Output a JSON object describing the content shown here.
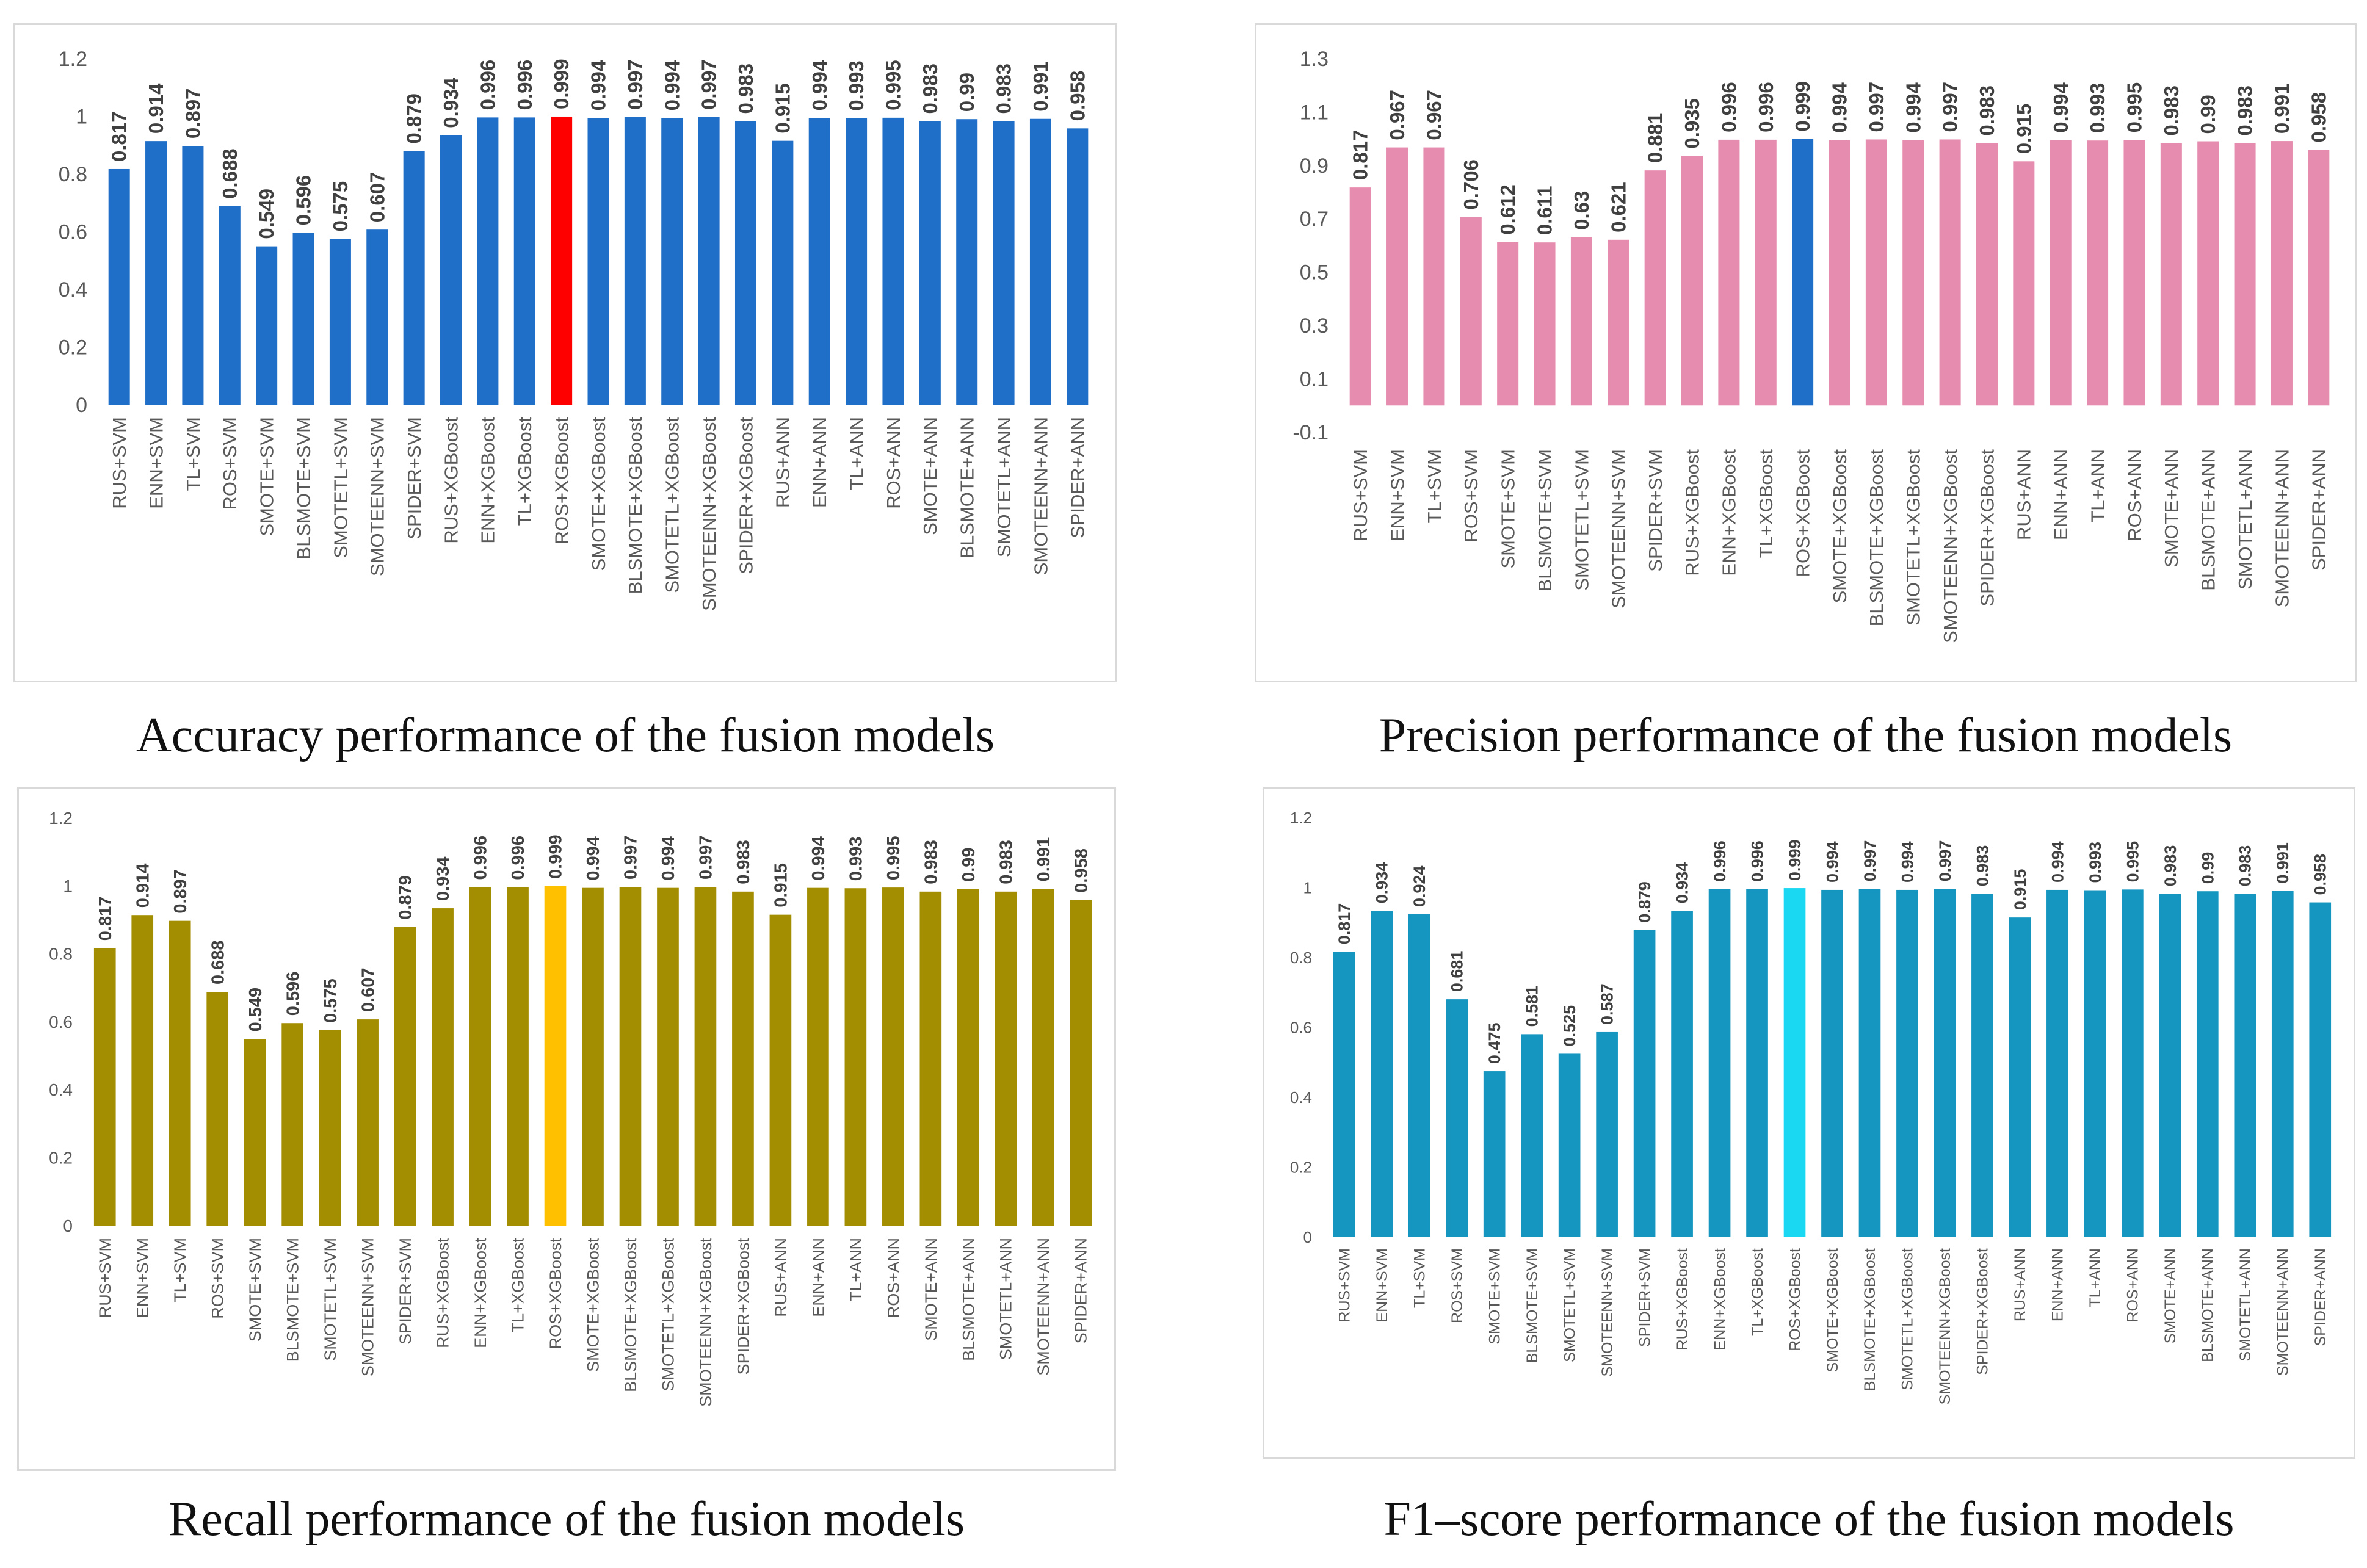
{
  "captions": {
    "accuracy": "Accuracy performance of the fusion models",
    "precision": "Precision performance of the fusion models",
    "recall": "Recall performance of the fusion models",
    "f1": "F1–score performance of the fusion models"
  },
  "chart_data": [
    {
      "id": "accuracy",
      "type": "bar",
      "title": "",
      "xlabel": "",
      "ylabel": "",
      "categories": [
        "RUS+SVM",
        "ENN+SVM",
        "TL+SVM",
        "ROS+SVM",
        "SMOTE+SVM",
        "BLSMOTE+SVM",
        "SMOTETL+SVM",
        "SMOTEENN+SVM",
        "SPIDER+SVM",
        "RUS+XGBoost",
        "ENN+XGBoost",
        "TL+XGBoost",
        "ROS+XGBoost",
        "SMOTE+XGBoost",
        "BLSMOTE+XGBoost",
        "SMOTETL+XGBoost",
        "SMOTEENN+XGBoost",
        "SPIDER+XGBoost",
        "RUS+ANN",
        "ENN+ANN",
        "TL+ANN",
        "ROS+ANN",
        "SMOTE+ANN",
        "BLSMOTE+ANN",
        "SMOTETL+ANN",
        "SMOTEENN+ANN",
        "SPIDER+ANN"
      ],
      "values": [
        0.817,
        0.914,
        0.897,
        0.688,
        0.549,
        0.596,
        0.575,
        0.607,
        0.879,
        0.934,
        0.996,
        0.996,
        0.999,
        0.994,
        0.997,
        0.994,
        0.997,
        0.983,
        0.915,
        0.994,
        0.993,
        0.995,
        0.983,
        0.99,
        0.983,
        0.991,
        0.958
      ],
      "value_labels": [
        "0.817",
        "0.914",
        "0.897",
        "0.688",
        "0.549",
        "0.596",
        "0.575",
        "0.607",
        "0.879",
        "0.934",
        "0.996",
        "0.996",
        "0.999",
        "0.994",
        "0.997",
        "0.994",
        "0.997",
        "0.983",
        "0.915",
        "0.994",
        "0.993",
        "0.995",
        "0.983",
        "0.99",
        "0.983",
        "0.991",
        "0.958"
      ],
      "ylim": [
        0,
        1.2
      ],
      "yticks": [
        0,
        0.2,
        0.4,
        0.6,
        0.8,
        1,
        1.2
      ],
      "ytick_labels": [
        "0",
        "0.2",
        "0.4",
        "0.6",
        "0.8",
        "1",
        "1.2"
      ],
      "color": "#1f6fc8",
      "highlight_index": 12,
      "highlight_color": "#ff0000",
      "grid": false,
      "legend": "none"
    },
    {
      "id": "precision",
      "type": "bar",
      "title": "",
      "xlabel": "",
      "ylabel": "",
      "categories": [
        "RUS+SVM",
        "ENN+SVM",
        "TL+SVM",
        "ROS+SVM",
        "SMOTE+SVM",
        "BLSMOTE+SVM",
        "SMOTETL+SVM",
        "SMOTEENN+SVM",
        "SPIDER+SVM",
        "RUS+XGBoost",
        "ENN+XGBoost",
        "TL+XGBoost",
        "ROS+XGBoost",
        "SMOTE+XGBoost",
        "BLSMOTE+XGBoost",
        "SMOTETL+XGBoost",
        "SMOTEENN+XGBoost",
        "SPIDER+XGBoost",
        "RUS+ANN",
        "ENN+ANN",
        "TL+ANN",
        "ROS+ANN",
        "SMOTE+ANN",
        "BLSMOTE+ANN",
        "SMOTETL+ANN",
        "SMOTEENN+ANN",
        "SPIDER+ANN"
      ],
      "values": [
        0.817,
        0.967,
        0.967,
        0.706,
        0.612,
        0.611,
        0.63,
        0.621,
        0.881,
        0.935,
        0.996,
        0.996,
        0.999,
        0.994,
        0.997,
        0.994,
        0.997,
        0.983,
        0.915,
        0.994,
        0.993,
        0.995,
        0.983,
        0.99,
        0.983,
        0.991,
        0.958
      ],
      "value_labels": [
        "0.817",
        "0.967",
        "0.967",
        "0.706",
        "0.612",
        "0.611",
        "0.63",
        "0.621",
        "0.881",
        "0.935",
        "0.996",
        "0.996",
        "0.999",
        "0.994",
        "0.997",
        "0.994",
        "0.997",
        "0.983",
        "0.915",
        "0.994",
        "0.993",
        "0.995",
        "0.983",
        "0.99",
        "0.983",
        "0.991",
        "0.958"
      ],
      "ylim": [
        -0.1,
        1.3
      ],
      "yticks": [
        -0.1,
        0.1,
        0.3,
        0.5,
        0.7,
        0.9,
        1.1,
        1.3
      ],
      "ytick_labels": [
        "-0.1",
        "0.1",
        "0.3",
        "0.5",
        "0.7",
        "0.9",
        "1.1",
        "1.3"
      ],
      "color": "#e68cae",
      "highlight_index": 12,
      "highlight_color": "#1f6fc8",
      "grid": false,
      "legend": "none"
    },
    {
      "id": "recall",
      "type": "bar",
      "title": "",
      "xlabel": "",
      "ylabel": "",
      "categories": [
        "RUS+SVM",
        "ENN+SVM",
        "TL+SVM",
        "ROS+SVM",
        "SMOTE+SVM",
        "BLSMOTE+SVM",
        "SMOTETL+SVM",
        "SMOTEENN+SVM",
        "SPIDER+SVM",
        "RUS+XGBoost",
        "ENN+XGBoost",
        "TL+XGBoost",
        "ROS+XGBoost",
        "SMOTE+XGBoost",
        "BLSMOTE+XGBoost",
        "SMOTETL+XGBoost",
        "SMOTEENN+XGBoost",
        "SPIDER+XGBoost",
        "RUS+ANN",
        "ENN+ANN",
        "TL+ANN",
        "ROS+ANN",
        "SMOTE+ANN",
        "BLSMOTE+ANN",
        "SMOTETL+ANN",
        "SMOTEENN+ANN",
        "SPIDER+ANN"
      ],
      "values": [
        0.817,
        0.914,
        0.897,
        0.688,
        0.549,
        0.596,
        0.575,
        0.607,
        0.879,
        0.934,
        0.996,
        0.996,
        0.999,
        0.994,
        0.997,
        0.994,
        0.997,
        0.983,
        0.915,
        0.994,
        0.993,
        0.995,
        0.983,
        0.99,
        0.983,
        0.991,
        0.958
      ],
      "value_labels": [
        "0.817",
        "0.914",
        "0.897",
        "0.688",
        "0.549",
        "0.596",
        "0.575",
        "0.607",
        "0.879",
        "0.934",
        "0.996",
        "0.996",
        "0.999",
        "0.994",
        "0.997",
        "0.994",
        "0.997",
        "0.983",
        "0.915",
        "0.994",
        "0.993",
        "0.995",
        "0.983",
        "0.99",
        "0.983",
        "0.991",
        "0.958"
      ],
      "ylim": [
        0,
        1.2
      ],
      "yticks": [
        0,
        0.2,
        0.4,
        0.6,
        0.8,
        1,
        1.2
      ],
      "ytick_labels": [
        "0",
        "0.2",
        "0.4",
        "0.6",
        "0.8",
        "1",
        "1.2"
      ],
      "color": "#a38d00",
      "highlight_index": 12,
      "highlight_color": "#ffc000",
      "grid": false,
      "legend": "none"
    },
    {
      "id": "f1",
      "type": "bar",
      "title": "",
      "xlabel": "",
      "ylabel": "",
      "categories": [
        "RUS+SVM",
        "ENN+SVM",
        "TL+SVM",
        "ROS+SVM",
        "SMOTE+SVM",
        "BLSMOTE+SVM",
        "SMOTETL+SVM",
        "SMOTEENN+SVM",
        "SPIDER+SVM",
        "RUS+XGBoost",
        "ENN+XGBoost",
        "TL+XGBoost",
        "ROS+XGBoost",
        "SMOTE+XGBoost",
        "BLSMOTE+XGBoost",
        "SMOTETL+XGBoost",
        "SMOTEENN+XGBoost",
        "SPIDER+XGBoost",
        "RUS+ANN",
        "ENN+ANN",
        "TL+ANN",
        "ROS+ANN",
        "SMOTE+ANN",
        "BLSMOTE+ANN",
        "SMOTETL+ANN",
        "SMOTEENN+ANN",
        "SPIDER+ANN"
      ],
      "values": [
        0.817,
        0.934,
        0.924,
        0.681,
        0.475,
        0.581,
        0.525,
        0.587,
        0.879,
        0.934,
        0.996,
        0.996,
        0.999,
        0.994,
        0.997,
        0.994,
        0.997,
        0.983,
        0.915,
        0.994,
        0.993,
        0.995,
        0.983,
        0.99,
        0.983,
        0.991,
        0.958
      ],
      "value_labels": [
        "0.817",
        "0.934",
        "0.924",
        "0.681",
        "0.475",
        "0.581",
        "0.525",
        "0.587",
        "0.879",
        "0.934",
        "0.996",
        "0.996",
        "0.999",
        "0.994",
        "0.997",
        "0.994",
        "0.997",
        "0.983",
        "0.915",
        "0.994",
        "0.993",
        "0.995",
        "0.983",
        "0.99",
        "0.983",
        "0.991",
        "0.958"
      ],
      "ylim": [
        0,
        1.2
      ],
      "yticks": [
        0,
        0.2,
        0.4,
        0.6,
        0.8,
        1,
        1.2
      ],
      "ytick_labels": [
        "0",
        "0.2",
        "0.4",
        "0.6",
        "0.8",
        "1",
        "1.2"
      ],
      "color": "#1496c0",
      "highlight_index": 12,
      "highlight_color": "#1ad8f2",
      "grid": false,
      "legend": "none"
    }
  ]
}
